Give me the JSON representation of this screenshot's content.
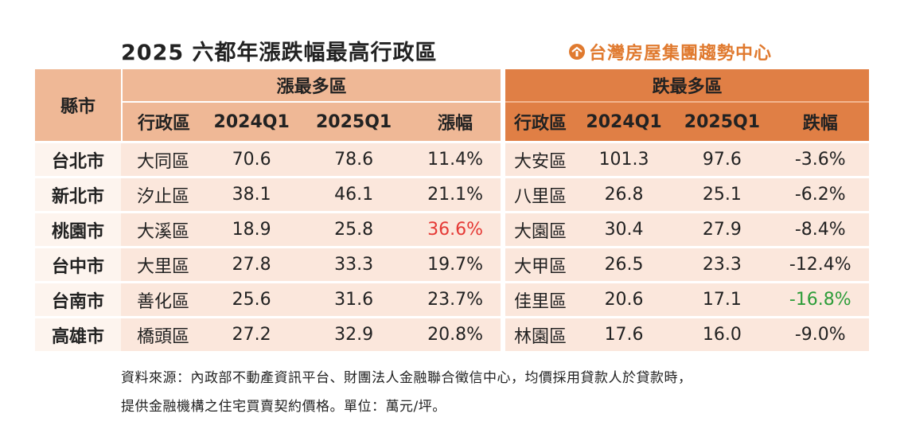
{
  "title": "2025 六都年漲跌幅最高行政區",
  "brand": {
    "name": "台灣房屋集團趨勢中心",
    "color": "#e07a2f",
    "icon": "house-logo-icon"
  },
  "table": {
    "city_header": "縣市",
    "rise_header": "漲最多區",
    "fall_header": "跌最多區",
    "rise_columns": [
      "行政區",
      "2024Q1",
      "2025Q1",
      "漲幅"
    ],
    "fall_columns": [
      "行政區",
      "2024Q1",
      "2025Q1",
      "跌幅"
    ],
    "rows": [
      {
        "city": "台北市",
        "rise": {
          "district": "大同區",
          "q2024": "70.6",
          "q2025": "78.6",
          "change": "11.4%"
        },
        "fall": {
          "district": "大安區",
          "q2024": "101.3",
          "q2025": "97.6",
          "change": "-3.6%"
        }
      },
      {
        "city": "新北市",
        "rise": {
          "district": "汐止區",
          "q2024": "38.1",
          "q2025": "46.1",
          "change": "21.1%"
        },
        "fall": {
          "district": "八里區",
          "q2024": "26.8",
          "q2025": "25.1",
          "change": "-6.2%"
        }
      },
      {
        "city": "桃園市",
        "rise": {
          "district": "大溪區",
          "q2024": "18.9",
          "q2025": "25.8",
          "change": "36.6%"
        },
        "fall": {
          "district": "大園區",
          "q2024": "30.4",
          "q2025": "27.9",
          "change": "-8.4%"
        }
      },
      {
        "city": "台中市",
        "rise": {
          "district": "大里區",
          "q2024": "27.8",
          "q2025": "33.3",
          "change": "19.7%"
        },
        "fall": {
          "district": "大甲區",
          "q2024": "26.5",
          "q2025": "23.3",
          "change": "-12.4%"
        }
      },
      {
        "city": "台南市",
        "rise": {
          "district": "善化區",
          "q2024": "25.6",
          "q2025": "31.6",
          "change": "23.7%"
        },
        "fall": {
          "district": "佳里區",
          "q2024": "20.6",
          "q2025": "17.1",
          "change": "-16.8%"
        }
      },
      {
        "city": "高雄市",
        "rise": {
          "district": "橋頭區",
          "q2024": "27.2",
          "q2025": "32.9",
          "change": "20.8%"
        },
        "fall": {
          "district": "林園區",
          "q2024": "17.6",
          "q2025": "16.0",
          "change": "-9.0%"
        }
      }
    ],
    "highlight_max_rise_color": "#e53935",
    "highlight_max_fall_color": "#2e9d3a"
  },
  "notes": {
    "line1": "資料來源：內政部不動產資訊平台、財團法人金融聯合徵信中心，均價採用貸款人於貸款時，",
    "line2": "提供金融機構之住宅買賣契約價格。單位：萬元/坪。"
  }
}
